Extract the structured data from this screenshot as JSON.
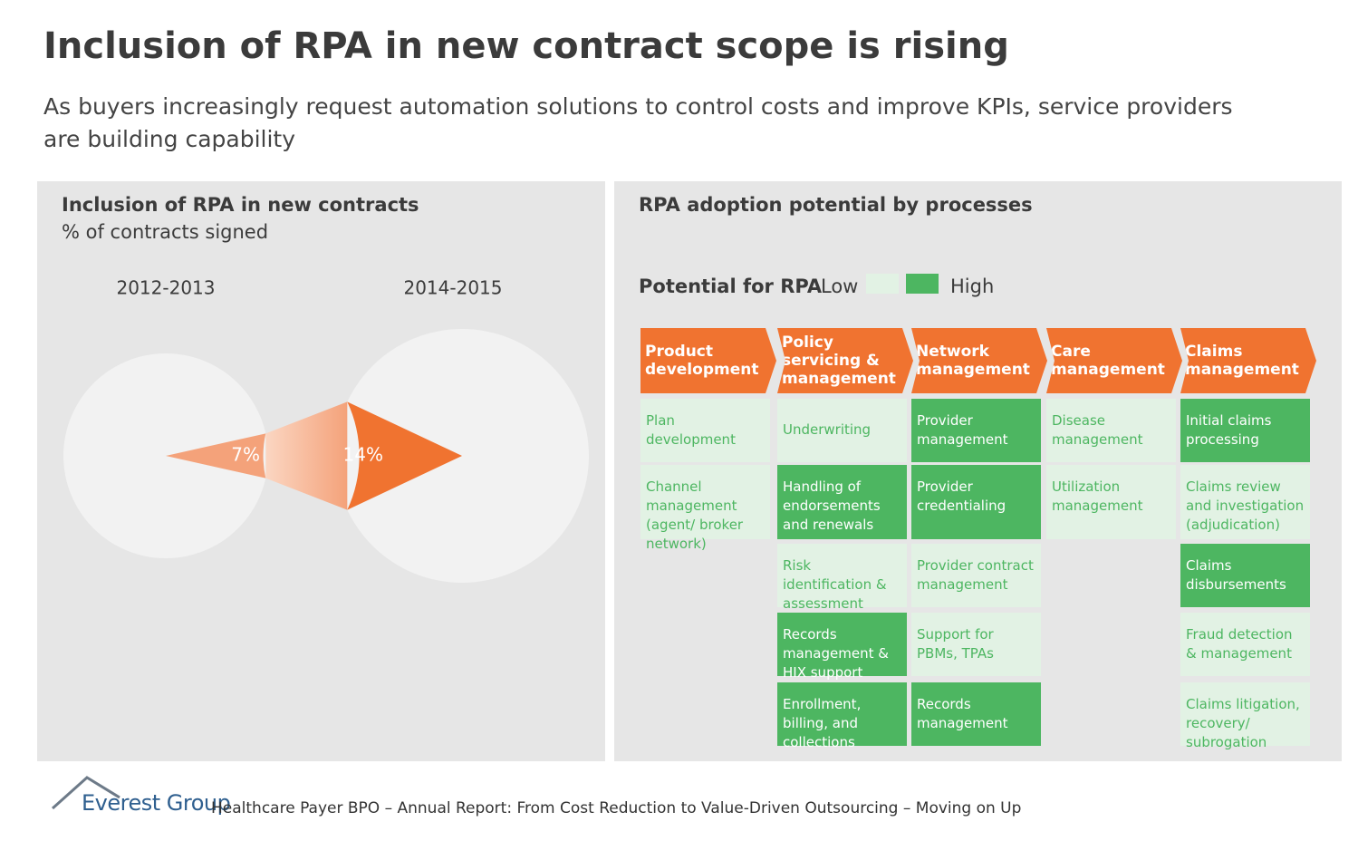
{
  "header": {
    "title": "Inclusion of RPA in new contract scope is rising",
    "subtitle": "As buyers increasingly request automation solutions to control costs and improve KPIs, service providers are building capability"
  },
  "chart_data": {
    "type": "pie",
    "title": "Inclusion of RPA in new contracts",
    "subtitle": "% of contracts signed",
    "categories": [
      "2012-2013",
      "2014-2015"
    ],
    "values": [
      7,
      14
    ],
    "value_labels": [
      "7%",
      "14%"
    ],
    "colors": [
      "#F4A27A",
      "#F07330"
    ]
  },
  "processes": {
    "title": "RPA adoption potential by processes",
    "legend": {
      "label": "Potential for RPA",
      "low": "Low",
      "high": "High"
    },
    "colors": {
      "low": "#E2F2E4",
      "high": "#4DB661"
    },
    "columns": [
      {
        "header": "Product development",
        "items": [
          {
            "label": "Plan development",
            "potential": "low"
          },
          {
            "label": "Channel management (agent/ broker network)",
            "potential": "low"
          }
        ]
      },
      {
        "header": "Policy servicing & management",
        "items": [
          {
            "label": "Underwriting",
            "potential": "low"
          },
          {
            "label": "Handling of endorsements and renewals",
            "potential": "high"
          },
          {
            "label": "Risk identification & assessment",
            "potential": "low"
          },
          {
            "label": "Records management & HIX support",
            "potential": "high"
          },
          {
            "label": "Enrollment, billing, and collections",
            "potential": "high"
          }
        ]
      },
      {
        "header": "Network management",
        "items": [
          {
            "label": "Provider management",
            "potential": "high"
          },
          {
            "label": "Provider credentialing",
            "potential": "high"
          },
          {
            "label": "Provider contract management",
            "potential": "low"
          },
          {
            "label": "Support for PBMs, TPAs",
            "potential": "low"
          },
          {
            "label": "Records management",
            "potential": "high"
          }
        ]
      },
      {
        "header": "Care management",
        "items": [
          {
            "label": "Disease management",
            "potential": "low"
          },
          {
            "label": "Utilization management",
            "potential": "low"
          }
        ]
      },
      {
        "header": "Claims management",
        "items": [
          {
            "label": "Initial claims processing",
            "potential": "high"
          },
          {
            "label": "Claims review and investigation (adjudication)",
            "potential": "low"
          },
          {
            "label": "Claims disbursements",
            "potential": "high"
          },
          {
            "label": "Fraud detection & management",
            "potential": "low"
          },
          {
            "label": "Claims litigation, recovery/ subrogation",
            "potential": "low"
          }
        ]
      }
    ]
  },
  "footer": {
    "brand": "Everest Group",
    "source": "Healthcare Payer BPO – Annual Report: From Cost Reduction to Value-Driven Outsourcing – Moving on Up"
  }
}
